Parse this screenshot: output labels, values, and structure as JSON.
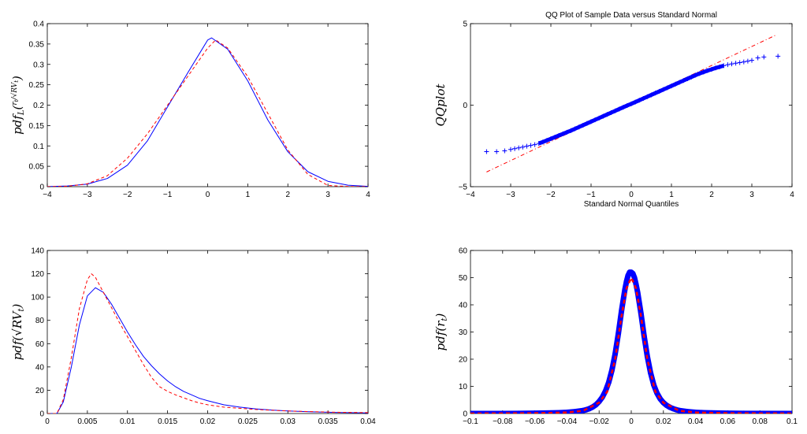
{
  "chart_data": [
    {
      "id": "p1",
      "type": "line",
      "title": "",
      "xlabel": "",
      "ylabel": "pdf_L(r_t / √RV_t)",
      "ylabel_parts": {
        "main": "pdf",
        "sub": "L",
        "frac_num": "r",
        "frac_num_sub": "t",
        "frac_den": "√RV",
        "frac_den_sub": "t"
      },
      "xlim": [
        -4,
        4
      ],
      "ylim": [
        0,
        0.4
      ],
      "xticks": [
        "−4",
        "−3",
        "−2",
        "−1",
        "0",
        "1",
        "2",
        "3",
        "4"
      ],
      "yticks": [
        "0",
        "0.05",
        "0.1",
        "0.15",
        "0.2",
        "0.25",
        "0.3",
        "0.35",
        "0.4"
      ],
      "grid": false,
      "series": [
        {
          "style": "solid",
          "color": "#0000ff",
          "x": [
            -4,
            -3.5,
            -3,
            -2.5,
            -2,
            -1.5,
            -1,
            -0.5,
            0,
            0.1,
            0.5,
            1,
            1.5,
            2,
            2.5,
            3,
            3.5,
            4
          ],
          "y": [
            0.0003,
            0.0016,
            0.0063,
            0.0202,
            0.0528,
            0.1127,
            0.1958,
            0.2787,
            0.3597,
            0.365,
            0.3372,
            0.2597,
            0.1638,
            0.0856,
            0.0367,
            0.0131,
            0.0037,
            0.0008
          ]
        },
        {
          "style": "dashed",
          "color": "#ff0000",
          "x": [
            -4,
            -3.5,
            -3,
            -2.5,
            -2,
            -1.5,
            -1,
            -0.5,
            0,
            0.2,
            0.5,
            1,
            1.5,
            2,
            2.5,
            3,
            3.5,
            4
          ],
          "y": [
            0,
            0.001,
            0.007,
            0.027,
            0.07,
            0.13,
            0.2,
            0.27,
            0.34,
            0.36,
            0.34,
            0.27,
            0.18,
            0.09,
            0.03,
            0.003,
            0.0005,
            0
          ]
        }
      ]
    },
    {
      "id": "p2",
      "type": "scatter",
      "title": "QQ Plot of Sample Data versus Standard Normal",
      "xlabel": "Standard Normal Quantiles",
      "ylabel": "QQplot",
      "xlim": [
        -4,
        4
      ],
      "ylim": [
        -5,
        5
      ],
      "xticks": [
        "−4",
        "−3",
        "−2",
        "−1",
        "0",
        "1",
        "2",
        "3",
        "4"
      ],
      "yticks": [
        "−5",
        "0",
        "5"
      ],
      "grid": false,
      "series": [
        {
          "kind": "reference-line",
          "style": "dashdot",
          "color": "#ff0000",
          "x": [
            -3.6,
            3.6
          ],
          "y": [
            -4.1,
            4.3
          ]
        },
        {
          "kind": "sample",
          "marker": "+",
          "color": "#0000ff",
          "x": [
            -3.6,
            -3.35,
            -3.15,
            -3.0,
            -2.9,
            -2.8,
            -2.7,
            -2.6,
            -2.5,
            -2.4,
            -2.3,
            -2.2,
            -2.1,
            -2.0,
            -1.9,
            -1.8,
            -1.7,
            -1.6,
            -1.5,
            -1.4,
            -1.3,
            -1.2,
            -1.1,
            -1.0,
            -0.9,
            -0.8,
            -0.7,
            -0.6,
            -0.5,
            -0.4,
            -0.3,
            -0.2,
            -0.1,
            0.0,
            0.1,
            0.2,
            0.3,
            0.4,
            0.5,
            0.6,
            0.7,
            0.8,
            0.9,
            1.0,
            1.1,
            1.2,
            1.3,
            1.4,
            1.5,
            1.6,
            1.7,
            1.8,
            1.9,
            2.0,
            2.1,
            2.2,
            2.3,
            2.4,
            2.5,
            2.6,
            2.7,
            2.8,
            2.9,
            3.0,
            3.15,
            3.3,
            3.65
          ],
          "y": [
            -2.85,
            -2.85,
            -2.8,
            -2.72,
            -2.67,
            -2.62,
            -2.57,
            -2.52,
            -2.47,
            -2.42,
            -2.35,
            -2.26,
            -2.16,
            -2.06,
            -1.96,
            -1.86,
            -1.76,
            -1.66,
            -1.56,
            -1.45,
            -1.34,
            -1.23,
            -1.12,
            -1.01,
            -0.9,
            -0.79,
            -0.68,
            -0.57,
            -0.46,
            -0.35,
            -0.24,
            -0.13,
            -0.02,
            0.08,
            0.19,
            0.3,
            0.41,
            0.52,
            0.63,
            0.74,
            0.85,
            0.96,
            1.07,
            1.18,
            1.29,
            1.4,
            1.51,
            1.62,
            1.73,
            1.84,
            1.94,
            2.03,
            2.12,
            2.2,
            2.28,
            2.35,
            2.42,
            2.48,
            2.53,
            2.57,
            2.61,
            2.65,
            2.7,
            2.75,
            2.9,
            2.95,
            3.0
          ]
        }
      ]
    },
    {
      "id": "p3",
      "type": "line",
      "title": "",
      "xlabel": "",
      "ylabel": "pdf(√RV_t)",
      "ylabel_parts": {
        "main": "pdf(",
        "root": "√RV",
        "sub": "t",
        "close": ")"
      },
      "xlim": [
        0,
        0.04
      ],
      "ylim": [
        0,
        140
      ],
      "xticks": [
        "0",
        "0.005",
        "0.01",
        "0.015",
        "0.02",
        "0.025",
        "0.03",
        "0.035",
        "0.04"
      ],
      "yticks": [
        "0",
        "20",
        "40",
        "60",
        "80",
        "100",
        "120",
        "140"
      ],
      "grid": false,
      "series": [
        {
          "style": "solid",
          "color": "#0000ff",
          "x": [
            0,
            0.0012,
            0.002,
            0.003,
            0.004,
            0.005,
            0.006,
            0.007,
            0.008,
            0.009,
            0.01,
            0.011,
            0.012,
            0.013,
            0.014,
            0.015,
            0.016,
            0.017,
            0.018,
            0.019,
            0.02,
            0.022,
            0.024,
            0.026,
            0.028,
            0.03,
            0.033,
            0.036,
            0.04
          ],
          "y": [
            0,
            0,
            10,
            40,
            76,
            101,
            108,
            104,
            94,
            82,
            70,
            59,
            49,
            41,
            34,
            28,
            23,
            19,
            16,
            13,
            11,
            7.5,
            5.5,
            4,
            3,
            2.2,
            1.4,
            0.9,
            0.5
          ]
        },
        {
          "style": "dashed",
          "color": "#ff0000",
          "x": [
            0,
            0.0012,
            0.002,
            0.003,
            0.004,
            0.005,
            0.0055,
            0.006,
            0.007,
            0.008,
            0.009,
            0.01,
            0.011,
            0.012,
            0.013,
            0.014,
            0.015,
            0.016,
            0.017,
            0.018,
            0.019,
            0.02,
            0.022,
            0.024,
            0.026,
            0.028,
            0.03,
            0.033,
            0.036,
            0.04
          ],
          "y": [
            0,
            0,
            12,
            48,
            90,
            115,
            120,
            117,
            104,
            91,
            78,
            66,
            54,
            42,
            31,
            23,
            19,
            16,
            13.5,
            11,
            9,
            7.5,
            5.5,
            4.5,
            3.5,
            2.8,
            2.2,
            1.6,
            1.1,
            0.8
          ]
        }
      ]
    },
    {
      "id": "p4",
      "type": "line",
      "title": "",
      "xlabel": "",
      "ylabel": "pdf(r_t)",
      "ylabel_parts": {
        "main": "pdf(r",
        "sub": "t",
        "close": ")"
      },
      "xlim": [
        -0.1,
        0.1
      ],
      "ylim": [
        0,
        60
      ],
      "xticks": [
        "−0.1",
        "−0.08",
        "−0.06",
        "−0.04",
        "−0.02",
        "0",
        "0.02",
        "0.04",
        "0.06",
        "0.08",
        "0.1"
      ],
      "yticks": [
        "0",
        "10",
        "20",
        "30",
        "40",
        "50",
        "60"
      ],
      "grid": false,
      "series": [
        {
          "kind": "empirical",
          "marker": "o",
          "color": "#0000ff",
          "x": [
            -0.1,
            -0.09,
            -0.08,
            -0.07,
            -0.06,
            -0.05,
            -0.045,
            -0.04,
            -0.035,
            -0.03,
            -0.028,
            -0.026,
            -0.024,
            -0.022,
            -0.02,
            -0.018,
            -0.016,
            -0.014,
            -0.012,
            -0.01,
            -0.008,
            -0.006,
            -0.004,
            -0.003,
            -0.002,
            -0.001,
            0,
            0.001,
            0.002,
            0.003,
            0.004,
            0.006,
            0.008,
            0.01,
            0.012,
            0.014,
            0.016,
            0.018,
            0.02,
            0.022,
            0.024,
            0.026,
            0.028,
            0.03,
            0.035,
            0.04,
            0.045,
            0.05,
            0.06,
            0.07,
            0.1
          ],
          "y": [
            0,
            0,
            0,
            0.05,
            0.1,
            0.2,
            0.3,
            0.45,
            0.7,
            1.1,
            1.4,
            1.8,
            2.4,
            3.2,
            4.4,
            6,
            8.3,
            11.5,
            16,
            22,
            29.5,
            38,
            45.5,
            48.5,
            50.8,
            52,
            52,
            51.5,
            50,
            47.5,
            44.5,
            37,
            28.5,
            21,
            15,
            10.5,
            7.5,
            5.4,
            4,
            3,
            2.3,
            1.8,
            1.4,
            1.1,
            0.7,
            0.45,
            0.3,
            0.2,
            0.1,
            0.05,
            0
          ]
        },
        {
          "kind": "fitted",
          "style": "dashed",
          "color": "#ff0000",
          "x": [
            -0.1,
            -0.06,
            -0.04,
            -0.03,
            -0.02,
            -0.015,
            -0.01,
            -0.006,
            -0.003,
            0,
            0.003,
            0.006,
            0.01,
            0.015,
            0.02,
            0.03,
            0.04,
            0.06,
            0.1
          ],
          "y": [
            0,
            0.1,
            0.4,
            1,
            4,
            8,
            20,
            36,
            46,
            50,
            46,
            36,
            20,
            8,
            4,
            1,
            0.4,
            0.1,
            0
          ]
        }
      ]
    }
  ]
}
